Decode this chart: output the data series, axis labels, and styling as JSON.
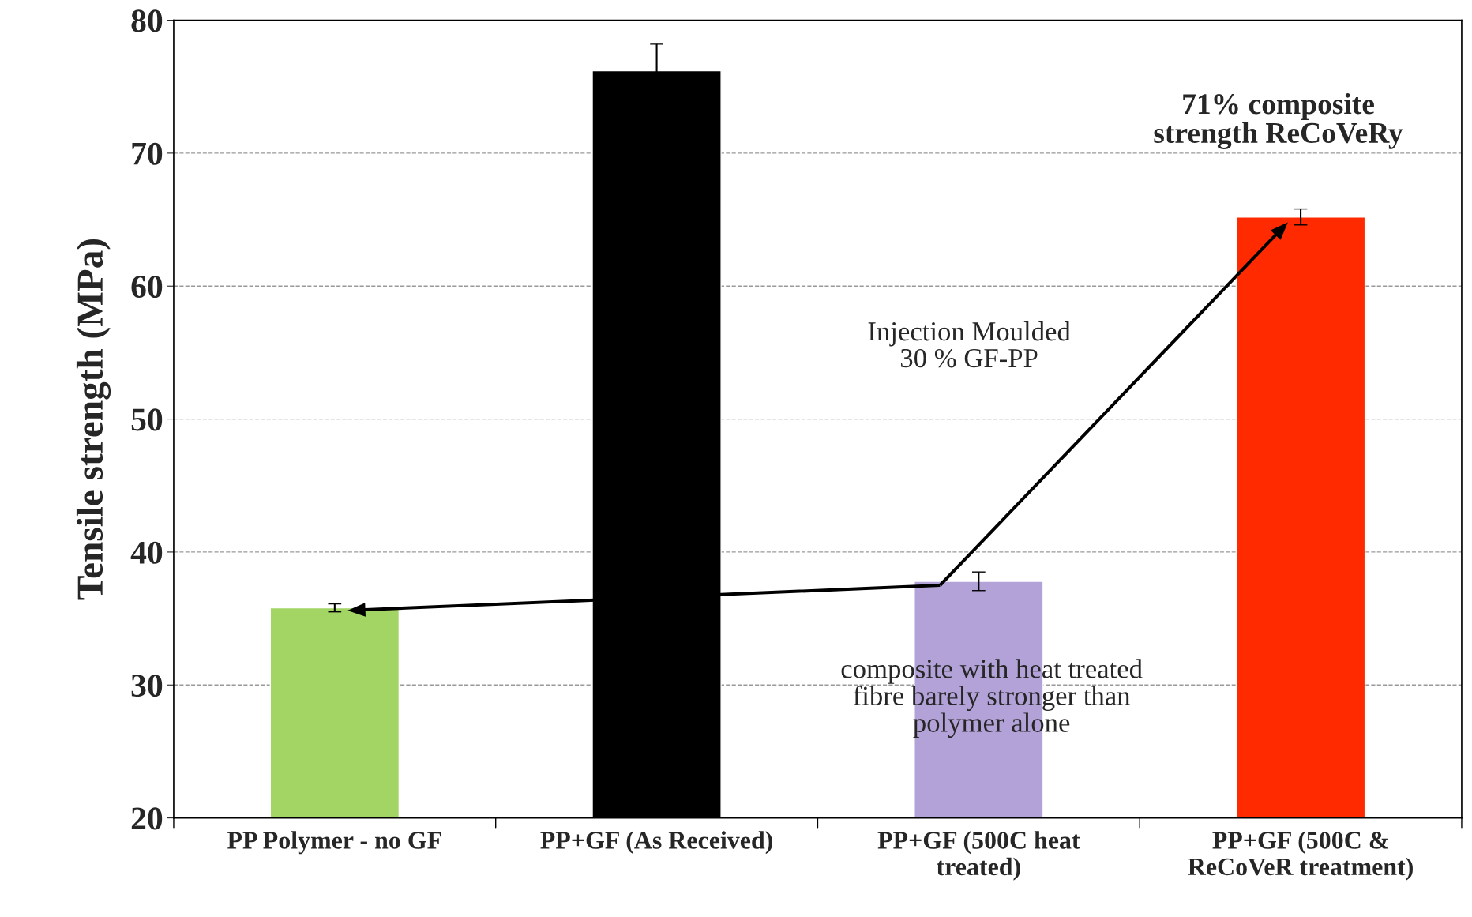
{
  "chart_data": {
    "type": "bar",
    "ylabel": "Tensile strength (MPa)",
    "categories": [
      "PP Polymer - no GF",
      "PP+GF (As Received)",
      "PP+GF (500C heat\ntreated)",
      "PP+GF (500C &\nReCoVeR treatment)"
    ],
    "values": [
      35.8,
      76.2,
      37.8,
      65.2
    ],
    "errors": [
      0.3,
      2,
      0.7,
      0.6
    ],
    "colors": [
      "#a2d563",
      "#000000",
      "#b2a2d8",
      "#ff2a00"
    ],
    "ylim": [
      20,
      80
    ],
    "yticks": [
      20,
      30,
      40,
      50,
      60,
      70,
      80
    ],
    "grid": "y",
    "annotations": [
      "71% composite\nstrength ReCoVeRy",
      "Injection Moulded\n30 % GF-PP",
      "composite with heat treated\nfibre barely stronger than\npolymer alone"
    ]
  }
}
